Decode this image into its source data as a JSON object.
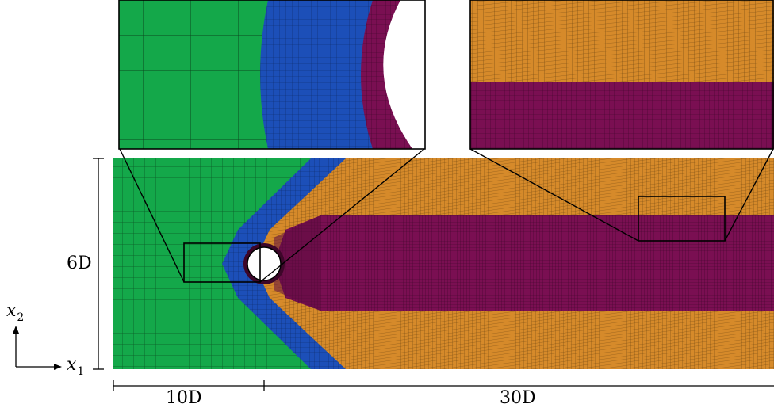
{
  "labels": {
    "height": "6D",
    "upstream": "10D",
    "downstream": "30D",
    "axis_x": "x",
    "axis_x_sub": "1",
    "axis_y": "x",
    "axis_y_sub": "2"
  },
  "colors": {
    "green": "#14a84a",
    "blue": "#1c4fb8",
    "maroon": "#7a0f52",
    "orange": "#d68a2a",
    "mesh_line": "#000000"
  },
  "zones": [
    "upstream-green-structured-zone",
    "blue-o-grid-zone",
    "maroon-refined-wake-zone",
    "orange-outer-zone"
  ]
}
